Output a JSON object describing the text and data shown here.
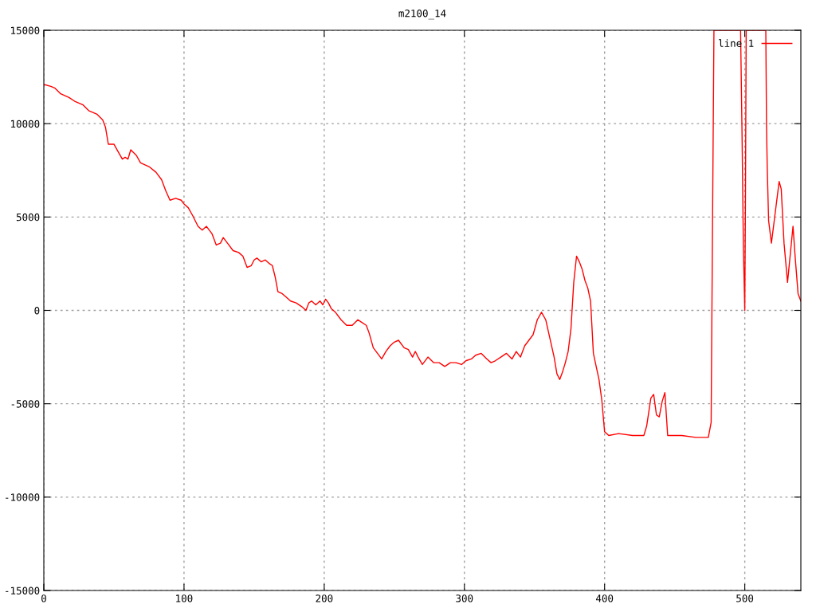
{
  "chart_data": {
    "type": "line",
    "title": "m2100_14",
    "xlim": [
      0,
      540
    ],
    "ylim": [
      -15000,
      15000
    ],
    "xticks": [
      0,
      100,
      200,
      300,
      400,
      500
    ],
    "yticks": [
      -15000,
      -10000,
      -5000,
      0,
      5000,
      10000,
      15000
    ],
    "grid": true,
    "legend": "top right",
    "marker": "none",
    "line_style": "solid",
    "series": [
      {
        "name": "line 1",
        "color": "#ff0000",
        "x": [
          0,
          5,
          8,
          12,
          18,
          22,
          28,
          32,
          38,
          42,
          44,
          46,
          50,
          53,
          56,
          58,
          60,
          62,
          66,
          69,
          75,
          80,
          84,
          87,
          90,
          94,
          98,
          100,
          103,
          106,
          110,
          113,
          116,
          120,
          123,
          126,
          128,
          131,
          135,
          139,
          142,
          145,
          148,
          150,
          152,
          155,
          158,
          161,
          163,
          165,
          167,
          170,
          173,
          176,
          180,
          184,
          187,
          189,
          191,
          194,
          197,
          199,
          201,
          203,
          205,
          208,
          212,
          216,
          220,
          224,
          226,
          230,
          232,
          235,
          238,
          241,
          244,
          247,
          250,
          253,
          257,
          260,
          263,
          265,
          267,
          270,
          274,
          278,
          282,
          286,
          290,
          294,
          298,
          301,
          305,
          308,
          312,
          316,
          319,
          322,
          326,
          330,
          334,
          337,
          340,
          343,
          346,
          349,
          352,
          355,
          358,
          361,
          364,
          366,
          368,
          370,
          372,
          374,
          376,
          378,
          380,
          382,
          384,
          386,
          388,
          390,
          392,
          394,
          396,
          398,
          400,
          403,
          410,
          420,
          428,
          430,
          433,
          435,
          437,
          439,
          441,
          443,
          445,
          455,
          465,
          474,
          476,
          477,
          478,
          497,
          498,
          499,
          500,
          500.5,
          501,
          515,
          515.5,
          516,
          517,
          519,
          521,
          524.5,
          526,
          528,
          530.5,
          534.4,
          536,
          538,
          540
        ],
        "values": [
          12100,
          12000,
          11900,
          11600,
          11400,
          11200,
          11000,
          10700,
          10500,
          10200,
          9800,
          8900,
          8900,
          8500,
          8100,
          8200,
          8100,
          8600,
          8300,
          7900,
          7700,
          7400,
          7000,
          6400,
          5900,
          6000,
          5900,
          5700,
          5500,
          5100,
          4500,
          4300,
          4500,
          4100,
          3500,
          3600,
          3900,
          3600,
          3200,
          3100,
          2900,
          2300,
          2400,
          2700,
          2800,
          2600,
          2700,
          2500,
          2400,
          1800,
          1000,
          900,
          700,
          500,
          400,
          200,
          0,
          400,
          500,
          300,
          500,
          300,
          600,
          400,
          100,
          -100,
          -500,
          -800,
          -800,
          -500,
          -600,
          -800,
          -1200,
          -2000,
          -2300,
          -2600,
          -2200,
          -1900,
          -1700,
          -1600,
          -2000,
          -2100,
          -2500,
          -2200,
          -2500,
          -2900,
          -2500,
          -2800,
          -2800,
          -3000,
          -2800,
          -2800,
          -2900,
          -2700,
          -2600,
          -2400,
          -2300,
          -2600,
          -2800,
          -2700,
          -2500,
          -2300,
          -2600,
          -2200,
          -2500,
          -1900,
          -1600,
          -1300,
          -500,
          -100,
          -500,
          -1500,
          -2500,
          -3400,
          -3700,
          -3300,
          -2800,
          -2200,
          -1000,
          1500,
          2900,
          2600,
          2200,
          1600,
          1200,
          500,
          -2300,
          -3000,
          -3700,
          -4800,
          -6500,
          -6700,
          -6600,
          -6700,
          -6700,
          -6200,
          -4700,
          -4500,
          -5600,
          -5700,
          -4900,
          -4400,
          -6700,
          -6700,
          -6800,
          -6800,
          -6000,
          4700,
          15000,
          15000,
          9700,
          3400,
          0,
          6400,
          15000,
          15000,
          9900,
          7700,
          4800,
          3600,
          4800,
          6900,
          6500,
          3600,
          1500,
          4500,
          2800,
          900,
          500
        ]
      }
    ]
  }
}
